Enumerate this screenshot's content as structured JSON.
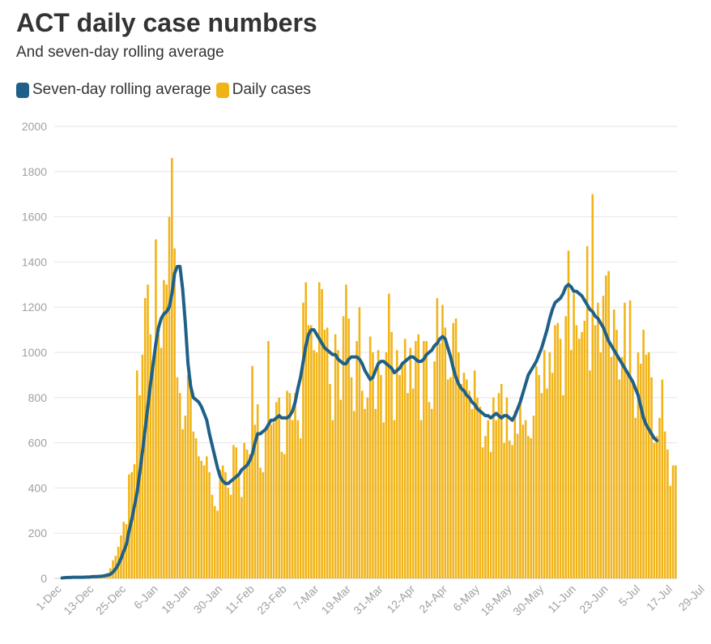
{
  "title": "ACT daily case numbers",
  "subtitle": "And seven-day rolling average",
  "legend": [
    {
      "label": "Seven-day rolling average",
      "color": "#1f6088"
    },
    {
      "label": "Daily cases",
      "color": "#f1b418"
    }
  ],
  "chart_data": {
    "type": "bar",
    "title": "ACT daily case numbers",
    "subtitle": "And seven-day rolling average",
    "xlabel": "",
    "ylabel": "",
    "ylim": [
      0,
      2000
    ],
    "yticks": [
      0,
      200,
      400,
      600,
      800,
      1000,
      1200,
      1400,
      1600,
      1800,
      2000
    ],
    "grid": true,
    "legend_position": "top-left",
    "start_date": "1-Dec",
    "x_tick_labels": [
      "1-Dec",
      "13-Dec",
      "25-Dec",
      "6-Jan",
      "18-Jan",
      "30-Jan",
      "11-Feb",
      "23-Feb",
      "7-Mar",
      "19-Mar",
      "31-Mar",
      "12-Apr",
      "24-Apr",
      "6-May",
      "18-May",
      "30-May",
      "11-Jun",
      "23-Jun",
      "5-Jul",
      "17-Jul",
      "29-Jul"
    ],
    "series": [
      {
        "name": "Daily cases",
        "type": "bar",
        "color": "#f1b418",
        "values": [
          3,
          4,
          5,
          4,
          6,
          5,
          4,
          8,
          5,
          6,
          7,
          9,
          10,
          8,
          12,
          15,
          20,
          25,
          45,
          80,
          100,
          140,
          190,
          250,
          240,
          460,
          470,
          505,
          920,
          810,
          990,
          1240,
          1300,
          1080,
          940,
          1500,
          1080,
          1020,
          1320,
          1300,
          1600,
          1860,
          1460,
          890,
          820,
          660,
          720,
          900,
          880,
          650,
          620,
          540,
          520,
          500,
          540,
          470,
          370,
          320,
          300,
          480,
          500,
          470,
          400,
          370,
          590,
          580,
          450,
          360,
          600,
          570,
          550,
          940,
          680,
          770,
          490,
          470,
          660,
          1050,
          680,
          690,
          780,
          800,
          560,
          550,
          830,
          820,
          700,
          820,
          700,
          620,
          1220,
          1310,
          1120,
          1120,
          1010,
          1000,
          1310,
          1280,
          1100,
          1110,
          860,
          700,
          1080,
          1010,
          790,
          1160,
          1300,
          1150,
          890,
          740,
          1050,
          1200,
          830,
          750,
          800,
          1070,
          1000,
          750,
          1010,
          900,
          690,
          1000,
          1260,
          1090,
          700,
          1010,
          900,
          960,
          1060,
          820,
          1020,
          840,
          1050,
          1080,
          700,
          1050,
          1050,
          780,
          750,
          960,
          1240,
          1040,
          1210,
          1110,
          880,
          890,
          1130,
          1150,
          1000,
          860,
          910,
          880,
          830,
          750,
          920,
          800,
          760,
          580,
          630,
          700,
          560,
          800,
          700,
          820,
          860,
          600,
          800,
          610,
          590,
          740,
          640,
          800,
          680,
          700,
          630,
          620,
          720,
          940,
          900,
          820,
          1010,
          840,
          1000,
          910,
          1120,
          1130,
          1060,
          810,
          1160,
          1450,
          1010,
          1260,
          1120,
          1060,
          1090,
          1140,
          1470,
          920,
          1700,
          1120,
          1220,
          1000,
          1250,
          1340,
          1360,
          980,
          1190,
          1100,
          880,
          980,
          1220,
          920,
          1230,
          860,
          710,
          1000,
          950,
          1100,
          990,
          1000,
          890,
          600,
          630,
          710,
          880,
          650,
          570,
          410,
          500,
          500
        ]
      },
      {
        "name": "Seven-day rolling average",
        "type": "line",
        "color": "#1f6088",
        "values": [
          2,
          3,
          4,
          4,
          5,
          5,
          5,
          5,
          5,
          6,
          6,
          7,
          8,
          8,
          9,
          10,
          12,
          14,
          18,
          28,
          42,
          62,
          88,
          120,
          150,
          210,
          260,
          320,
          380,
          470,
          560,
          660,
          760,
          860,
          950,
          1040,
          1110,
          1150,
          1170,
          1180,
          1200,
          1260,
          1350,
          1380,
          1380,
          1280,
          1130,
          950,
          850,
          800,
          790,
          780,
          760,
          730,
          700,
          640,
          590,
          540,
          490,
          450,
          430,
          420,
          420,
          430,
          440,
          450,
          460,
          480,
          490,
          500,
          520,
          550,
          600,
          640,
          640,
          650,
          660,
          680,
          700,
          700,
          710,
          720,
          710,
          710,
          710,
          720,
          740,
          780,
          840,
          890,
          960,
          1030,
          1080,
          1100,
          1100,
          1080,
          1060,
          1040,
          1020,
          1010,
          1000,
          990,
          990,
          970,
          960,
          950,
          950,
          970,
          980,
          980,
          980,
          970,
          950,
          920,
          900,
          880,
          890,
          920,
          950,
          960,
          960,
          950,
          940,
          930,
          910,
          920,
          930,
          950,
          960,
          970,
          980,
          980,
          970,
          960,
          960,
          970,
          990,
          1000,
          1010,
          1030,
          1040,
          1060,
          1070,
          1060,
          1020,
          980,
          930,
          890,
          860,
          840,
          830,
          810,
          800,
          780,
          770,
          750,
          740,
          730,
          720,
          720,
          710,
          720,
          730,
          720,
          710,
          720,
          720,
          710,
          700,
          720,
          750,
          780,
          820,
          860,
          900,
          920,
          940,
          960,
          990,
          1020,
          1060,
          1100,
          1150,
          1190,
          1220,
          1230,
          1240,
          1260,
          1290,
          1300,
          1290,
          1270,
          1270,
          1260,
          1250,
          1230,
          1210,
          1190,
          1180,
          1160,
          1150,
          1130,
          1110,
          1080,
          1050,
          1030,
          1010,
          990,
          970,
          950,
          930,
          910,
          890,
          870,
          840,
          810,
          760,
          710,
          680,
          660,
          640,
          620,
          610
        ]
      }
    ]
  }
}
